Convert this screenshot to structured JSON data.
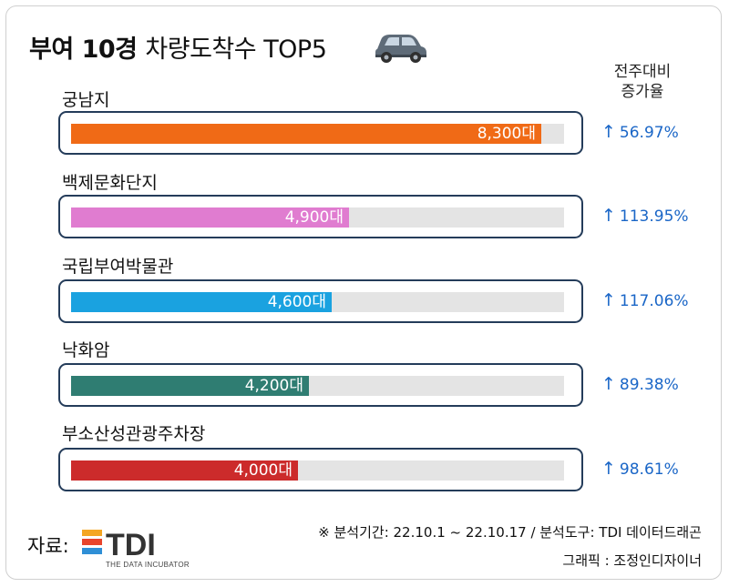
{
  "title_bold": "부여 10경",
  "title_rest": "차량도착수 TOP5",
  "column_header_line1": "전주대비",
  "column_header_line2": "증가율",
  "chart_data": {
    "type": "bar",
    "orientation": "horizontal",
    "title": "부여 10경 차량도착수 TOP5",
    "categories": [
      "궁남지",
      "백제문화단지",
      "국립부여박물관",
      "낙화암",
      "부소산성관광주차장"
    ],
    "values": [
      8300,
      4900,
      4600,
      4200,
      4000
    ],
    "value_labels": [
      "8,300대",
      "4,900대",
      "4,600대",
      "4,200대",
      "4,000대"
    ],
    "unit": "대",
    "xlim": [
      0,
      8700
    ],
    "bar_colors": [
      "#f06a16",
      "#e07cd0",
      "#1aa2e0",
      "#2f7d72",
      "#cc2b2b"
    ],
    "track_color": "#e4e4e4",
    "growth_header": "전주대비 증가율",
    "growth_arrow": "↑",
    "growth": [
      "56.97%",
      "113.95%",
      "117.06%",
      "89.38%",
      "98.61%"
    ],
    "growth_color": "#1a66c7"
  },
  "source_label": "자료:",
  "logo_text": "TDI",
  "logo_subtext": "THE DATA INCUBATOR",
  "footnote_period": "※ 분석기간: 22.10.1 ~ 22.10.17 / 분석도구: TDI 데이터드래곤",
  "footnote_graphic": "그래픽 : 조정인디자이너"
}
